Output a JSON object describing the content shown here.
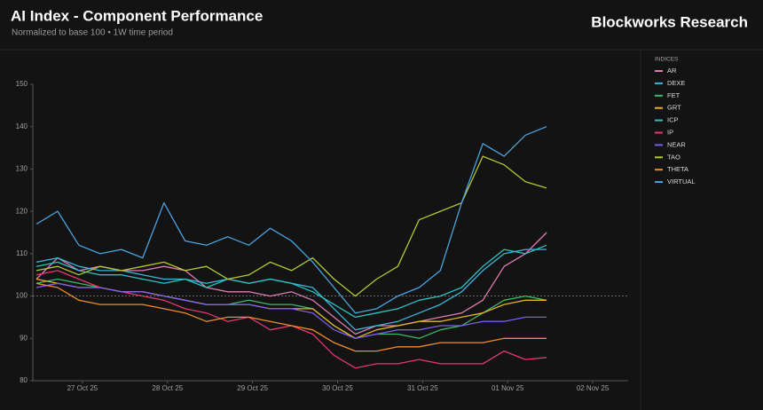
{
  "chart_data": {
    "type": "line",
    "title": "AI Index - Component Performance",
    "subtitle": "Normalized to base 100 • 1W time period",
    "brand": "Blockworks Research",
    "legend_title": "INDICES",
    "x": [
      "2025-10-26T11:00",
      "2025-10-26T17:00",
      "2025-10-26T23:00",
      "2025-10-27T05:00",
      "2025-10-27T11:00",
      "2025-10-27T17:00",
      "2025-10-27T23:00",
      "2025-10-28T05:00",
      "2025-10-28T11:00",
      "2025-10-28T17:00",
      "2025-10-28T23:00",
      "2025-10-29T05:00",
      "2025-10-29T11:00",
      "2025-10-29T17:00",
      "2025-10-29T23:00",
      "2025-10-30T05:00",
      "2025-10-30T11:00",
      "2025-10-30T17:00",
      "2025-10-30T23:00",
      "2025-10-31T05:00",
      "2025-10-31T11:00",
      "2025-10-31T17:00",
      "2025-10-31T23:00",
      "2025-11-01T05:00",
      "2025-11-01T11:00"
    ],
    "xlim": [
      "2025-10-26T10:00",
      "2025-11-02T10:00"
    ],
    "xticks": [
      {
        "value": "2025-10-27T00:00",
        "label": "27 Oct 25"
      },
      {
        "value": "2025-10-28T00:00",
        "label": "28 Oct 25"
      },
      {
        "value": "2025-10-29T00:00",
        "label": "29 Oct 25"
      },
      {
        "value": "2025-10-30T00:00",
        "label": "30 Oct 25"
      },
      {
        "value": "2025-10-31T00:00",
        "label": "31 Oct 25"
      },
      {
        "value": "2025-11-01T00:00",
        "label": "01 Nov 25"
      },
      {
        "value": "2025-11-02T00:00",
        "label": "02 Nov 25"
      }
    ],
    "ylim": [
      80,
      150
    ],
    "yticks": [
      80,
      90,
      100,
      110,
      120,
      130,
      140,
      150
    ],
    "reference_line": 100,
    "legend": "right",
    "series": [
      {
        "name": "AR",
        "color": "#e07bb5",
        "values": [
          104,
          109,
          106,
          107,
          106,
          106,
          107,
          106,
          102,
          101,
          101,
          100,
          101,
          99,
          95,
          91,
          93,
          93,
          94,
          95,
          96,
          99,
          107,
          110,
          115
        ]
      },
      {
        "name": "DEXE",
        "color": "#3bb6dc",
        "values": [
          108,
          109,
          107,
          106,
          106,
          105,
          104,
          104,
          103,
          104,
          103,
          104,
          103,
          102,
          97,
          92,
          93,
          94,
          96,
          98,
          101,
          106,
          110,
          111,
          111
        ]
      },
      {
        "name": "FET",
        "color": "#3cb868",
        "values": [
          103,
          104,
          103,
          102,
          101,
          101,
          100,
          99,
          98,
          98,
          99,
          98,
          98,
          97,
          93,
          90,
          91,
          91,
          90,
          92,
          93,
          96,
          99,
          100,
          99
        ]
      },
      {
        "name": "GRT",
        "color": "#e6b422",
        "values": [
          104,
          103,
          102,
          102,
          101,
          101,
          100,
          99,
          98,
          98,
          98,
          97,
          97,
          97,
          93,
          90,
          92,
          93,
          94,
          94,
          95,
          96,
          98,
          99,
          99
        ]
      },
      {
        "name": "ICP",
        "color": "#2cc2c0",
        "values": [
          107,
          108,
          106,
          105,
          105,
          104,
          103,
          104,
          102,
          104,
          103,
          104,
          103,
          101,
          98,
          95,
          96,
          97,
          99,
          100,
          102,
          107,
          111,
          110,
          112
        ]
      },
      {
        "name": "IP",
        "color": "#e4386e",
        "values": [
          105,
          106,
          104,
          102,
          101,
          100,
          99,
          97,
          96,
          94,
          95,
          92,
          93,
          91,
          86,
          83,
          84,
          84,
          85,
          84,
          84,
          84,
          87,
          85,
          85.5
        ]
      },
      {
        "name": "NEAR",
        "color": "#7c5cf0",
        "values": [
          102,
          103,
          102,
          102,
          101,
          101,
          100,
          99,
          98,
          98,
          98,
          97,
          97,
          96,
          92,
          90,
          91,
          92,
          92,
          93,
          93,
          94,
          94,
          95,
          95
        ]
      },
      {
        "name": "TAO",
        "color": "#b4c733",
        "values": [
          106,
          107,
          105,
          107,
          106,
          107,
          108,
          106,
          107,
          104,
          105,
          108,
          106,
          109,
          104,
          100,
          104,
          107,
          118,
          120,
          122,
          133,
          131,
          127,
          125.5
        ]
      },
      {
        "name": "THETA",
        "color": "#f08c2c",
        "values": [
          103,
          102,
          99,
          98,
          98,
          98,
          97,
          96,
          94,
          95,
          95,
          94,
          93,
          92,
          89,
          87,
          87,
          88,
          88,
          89,
          89,
          89,
          90,
          90,
          90
        ]
      },
      {
        "name": "VIRTUAL",
        "color": "#4aa4e0",
        "values": [
          117,
          120,
          112,
          110,
          111,
          109,
          122,
          113,
          112,
          114,
          112,
          116,
          113,
          108,
          102,
          96,
          97,
          100,
          102,
          106,
          122,
          136,
          133,
          138,
          140
        ]
      }
    ]
  }
}
